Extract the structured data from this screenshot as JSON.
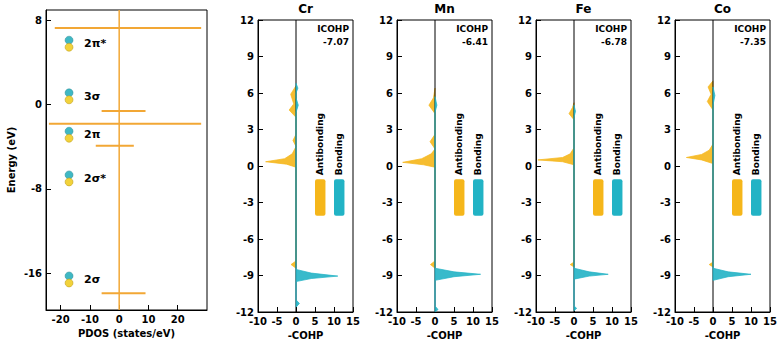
{
  "chart_data": [
    {
      "type": "spikes",
      "xlabel": "PDOS (states/eV)",
      "ylabel": "Energy (eV)",
      "xlim": [
        -25,
        30
      ],
      "xticks": [
        -20,
        -10,
        0,
        10,
        20
      ],
      "ylim": [
        -19.5,
        9
      ],
      "yticks": [
        -16,
        -8,
        0,
        8
      ],
      "color": "#f2a735",
      "peaks": [
        {
          "energy": 7.3,
          "low": -22,
          "high": 28
        },
        {
          "energy": -0.6,
          "low": -6,
          "high": 9
        },
        {
          "energy": -1.8,
          "low": -24,
          "high": 28
        },
        {
          "energy": -3.9,
          "low": -8,
          "high": 5
        },
        {
          "energy": -17.9,
          "low": -6,
          "high": 9
        }
      ],
      "annotations": [
        {
          "text": "2π*",
          "x": -12,
          "y": 5.8
        },
        {
          "text": "3σ",
          "x": -12,
          "y": 0.8
        },
        {
          "text": "2π",
          "x": -12,
          "y": -2.85
        },
        {
          "text": "2σ*",
          "x": -12,
          "y": -7
        },
        {
          "text": "2σ",
          "x": -12,
          "y": -16.6
        }
      ]
    },
    {
      "type": "area",
      "title": "Cr",
      "xlabel": "-COHP",
      "icohp_label": "ICOHP",
      "icohp": -7.07,
      "xlim": [
        -10,
        15
      ],
      "xticks": [
        -10,
        -5,
        0,
        5,
        10,
        15
      ],
      "ylim": [
        -12,
        12
      ],
      "yticks": [
        -12,
        -9,
        -6,
        -3,
        0,
        3,
        6,
        9,
        12
      ],
      "series": [
        {
          "name": "Antibonding",
          "color": "#f5b61a",
          "points": [
            [
              0,
              -8.4
            ],
            [
              -1.3,
              -8.1
            ],
            [
              0,
              -7.8
            ],
            [
              0,
              -0.1
            ],
            [
              -2.5,
              0.15
            ],
            [
              -8,
              0.35
            ],
            [
              -3,
              0.6
            ],
            [
              -1,
              1
            ],
            [
              0,
              1.6
            ],
            [
              -0.8,
              2.1
            ],
            [
              0,
              2.6
            ],
            [
              0,
              4
            ],
            [
              -1.8,
              4.6
            ],
            [
              -0.6,
              5.1
            ],
            [
              -1.4,
              5.9
            ],
            [
              0,
              6.6
            ]
          ]
        },
        {
          "name": "Bonding",
          "color": "#22b3c5",
          "points": [
            [
              0,
              -11.6
            ],
            [
              0.9,
              -11.3
            ],
            [
              0,
              -11
            ],
            [
              0,
              -9.5
            ],
            [
              4,
              -9.25
            ],
            [
              11,
              -9.05
            ],
            [
              4,
              -8.8
            ],
            [
              0,
              -8.5
            ],
            [
              0,
              4.4
            ],
            [
              0.6,
              5
            ],
            [
              0,
              5.6
            ],
            [
              0,
              6
            ],
            [
              0.5,
              6.4
            ],
            [
              0,
              6.8
            ]
          ]
        }
      ]
    },
    {
      "type": "area",
      "title": "Mn",
      "xlabel": "-COHP",
      "icohp_label": "ICOHP",
      "icohp": -6.41,
      "xlim": [
        -10,
        15
      ],
      "xticks": [
        -10,
        -5,
        0,
        5,
        10,
        15
      ],
      "ylim": [
        -12,
        12
      ],
      "yticks": [
        -12,
        -9,
        -6,
        -3,
        0,
        3,
        6,
        9,
        12
      ],
      "series": [
        {
          "name": "Antibonding",
          "color": "#f5b61a",
          "points": [
            [
              0,
              -8.4
            ],
            [
              -1.2,
              -8.1
            ],
            [
              0,
              -7.8
            ],
            [
              0,
              -0.1
            ],
            [
              -3,
              0.1
            ],
            [
              -8.5,
              0.3
            ],
            [
              -3.5,
              0.6
            ],
            [
              -1,
              1
            ],
            [
              0,
              1.4
            ],
            [
              -1.3,
              2
            ],
            [
              0,
              2.6
            ],
            [
              0,
              4.3
            ],
            [
              -1.6,
              5
            ],
            [
              -0.4,
              5.6
            ],
            [
              0,
              6.4
            ]
          ]
        },
        {
          "name": "Bonding",
          "color": "#22b3c5",
          "points": [
            [
              0,
              -12
            ],
            [
              0.8,
              -11.8
            ],
            [
              0,
              -11.5
            ],
            [
              0,
              -9.4
            ],
            [
              5,
              -9.1
            ],
            [
              12,
              -8.9
            ],
            [
              5,
              -8.7
            ],
            [
              0,
              -8.4
            ],
            [
              0,
              4.4
            ],
            [
              0.5,
              5
            ],
            [
              0,
              5.7
            ]
          ]
        }
      ]
    },
    {
      "type": "area",
      "title": "Fe",
      "xlabel": "-COHP",
      "icohp_label": "ICOHP",
      "icohp": -6.78,
      "xlim": [
        -10,
        15
      ],
      "xticks": [
        -10,
        -5,
        0,
        5,
        10,
        15
      ],
      "ylim": [
        -12,
        12
      ],
      "yticks": [
        -12,
        -9,
        -6,
        -3,
        0,
        3,
        6,
        9,
        12
      ],
      "series": [
        {
          "name": "Antibonding",
          "color": "#f5b61a",
          "points": [
            [
              0,
              -8.3
            ],
            [
              -1,
              -8.1
            ],
            [
              0,
              -7.9
            ],
            [
              0,
              0.1
            ],
            [
              -3,
              0.35
            ],
            [
              -9.5,
              0.5
            ],
            [
              -3,
              0.7
            ],
            [
              -1,
              1
            ],
            [
              0,
              1.5
            ],
            [
              0,
              3.8
            ],
            [
              -1.3,
              4.3
            ],
            [
              -0.4,
              4.8
            ],
            [
              0,
              5.2
            ]
          ]
        },
        {
          "name": "Bonding",
          "color": "#22b3c5",
          "points": [
            [
              0,
              -11.9
            ],
            [
              0.7,
              -11.7
            ],
            [
              0,
              -11.5
            ],
            [
              0,
              -9.3
            ],
            [
              4,
              -9.05
            ],
            [
              9,
              -8.9
            ],
            [
              4,
              -8.7
            ],
            [
              0,
              -8.4
            ],
            [
              0,
              4
            ],
            [
              0.4,
              4.5
            ],
            [
              0,
              5
            ]
          ]
        }
      ]
    },
    {
      "type": "area",
      "title": "Co",
      "xlabel": "-COHP",
      "icohp_label": "ICOHP",
      "icohp": -7.35,
      "xlim": [
        -10,
        15
      ],
      "xticks": [
        -10,
        -5,
        0,
        5,
        10,
        15
      ],
      "ylim": [
        -12,
        12
      ],
      "yticks": [
        -12,
        -9,
        -6,
        -3,
        0,
        3,
        6,
        9,
        12
      ],
      "series": [
        {
          "name": "Antibonding",
          "color": "#f5b61a",
          "points": [
            [
              0,
              -8.3
            ],
            [
              -1,
              -8.1
            ],
            [
              0,
              -7.9
            ],
            [
              0,
              0.2
            ],
            [
              -3,
              0.5
            ],
            [
              -7,
              0.7
            ],
            [
              -3,
              0.95
            ],
            [
              -1,
              1.3
            ],
            [
              0,
              1.8
            ],
            [
              0,
              4.6
            ],
            [
              -1.5,
              5.3
            ],
            [
              -0.5,
              5.9
            ],
            [
              -1.3,
              6.5
            ],
            [
              0,
              7
            ]
          ]
        },
        {
          "name": "Bonding",
          "color": "#22b3c5",
          "points": [
            [
              0,
              -9.4
            ],
            [
              4,
              -9.1
            ],
            [
              10,
              -8.9
            ],
            [
              4,
              -8.7
            ],
            [
              0,
              -8.4
            ],
            [
              0,
              5
            ],
            [
              0.5,
              5.8
            ],
            [
              0,
              6.5
            ]
          ]
        }
      ]
    }
  ]
}
